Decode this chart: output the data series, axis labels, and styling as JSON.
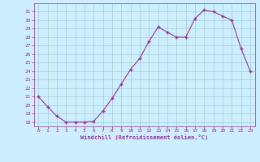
{
  "x": [
    0,
    1,
    2,
    3,
    4,
    5,
    6,
    7,
    8,
    9,
    10,
    11,
    12,
    13,
    14,
    15,
    16,
    17,
    18,
    19,
    20,
    21,
    22,
    23
  ],
  "y": [
    21.0,
    19.8,
    18.7,
    18.0,
    18.0,
    18.0,
    18.1,
    19.3,
    20.8,
    22.5,
    24.2,
    25.5,
    27.5,
    29.2,
    28.6,
    28.0,
    28.0,
    30.2,
    31.2,
    31.0,
    30.5,
    30.0,
    26.7,
    24.0
  ],
  "ylim": [
    17.5,
    32.0
  ],
  "xlim": [
    -0.5,
    23.5
  ],
  "yticks": [
    18,
    19,
    20,
    21,
    22,
    23,
    24,
    25,
    26,
    27,
    28,
    29,
    30,
    31
  ],
  "xticks": [
    0,
    1,
    2,
    3,
    4,
    5,
    6,
    7,
    8,
    9,
    10,
    11,
    12,
    13,
    14,
    15,
    16,
    17,
    18,
    19,
    20,
    21,
    22,
    23
  ],
  "line_color": "#993399",
  "marker_color": "#993399",
  "bg_color": "#cceeff",
  "grid_color": "#aacccc",
  "xlabel": "Windchill (Refroidissement éolien,°C)",
  "xlabel_color": "#993399",
  "tick_color": "#993399",
  "axis_color": "#993399",
  "font_name": "monospace"
}
